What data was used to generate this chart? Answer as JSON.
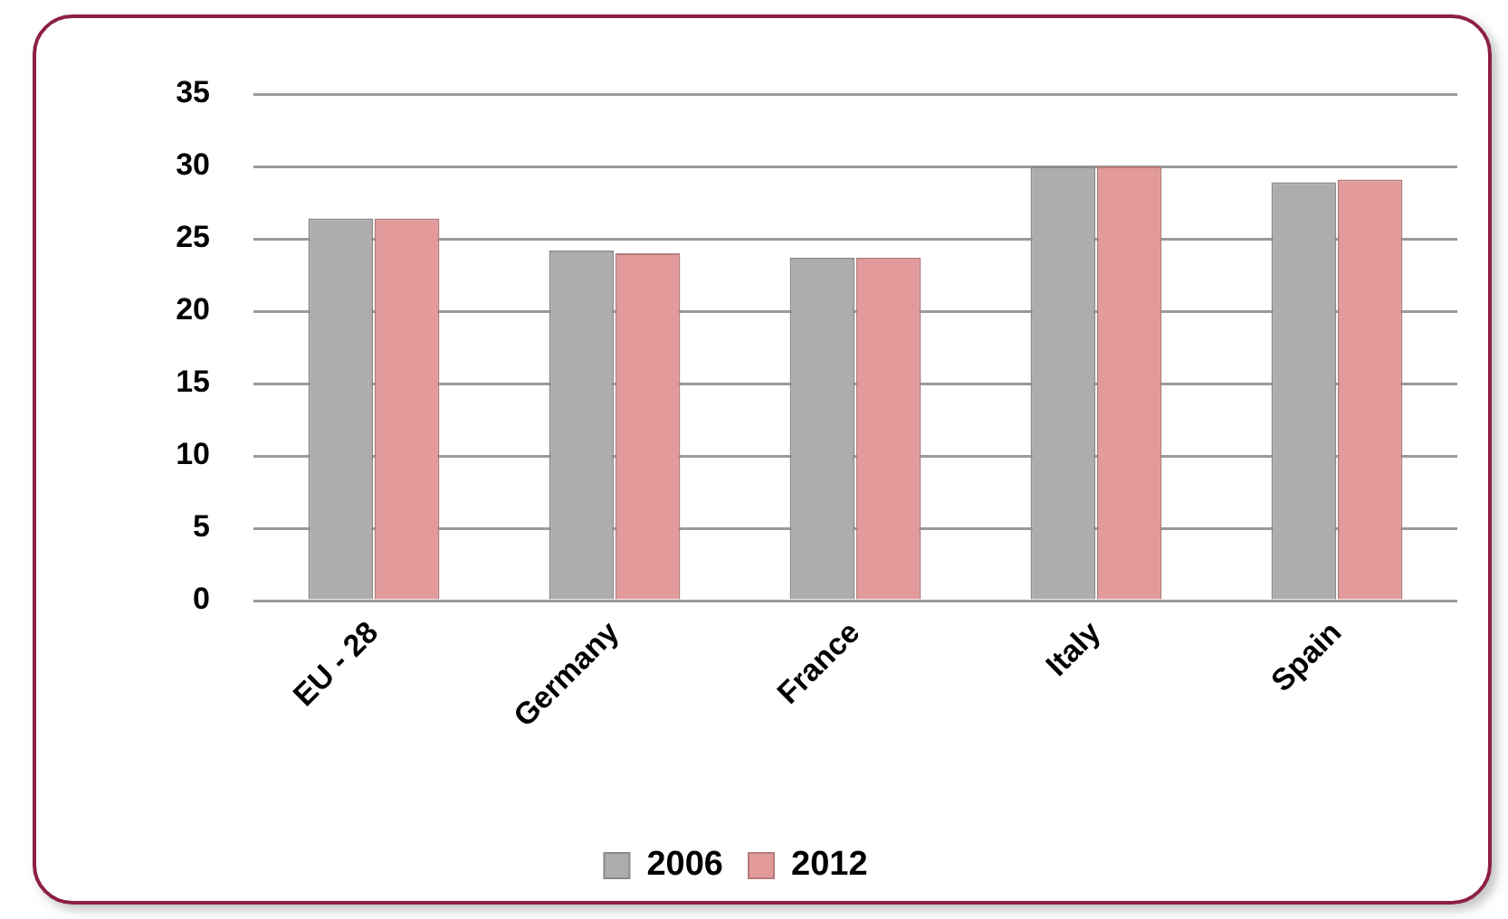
{
  "chart_data": {
    "type": "bar",
    "categories": [
      "EU - 28",
      "Germany",
      "France",
      "Italy",
      "Spain"
    ],
    "series": [
      {
        "name": "2006",
        "color": "#adadad",
        "values": [
          26.4,
          24.2,
          23.7,
          30.0,
          28.9
        ]
      },
      {
        "name": "2012",
        "color": "#e39a9a",
        "values": [
          26.4,
          24.0,
          23.7,
          30.0,
          29.1
        ]
      }
    ],
    "ylim": [
      0,
      35
    ],
    "yticks": [
      0,
      5,
      10,
      15,
      20,
      25,
      30,
      35
    ],
    "grid": "y",
    "legend": "bottom"
  }
}
